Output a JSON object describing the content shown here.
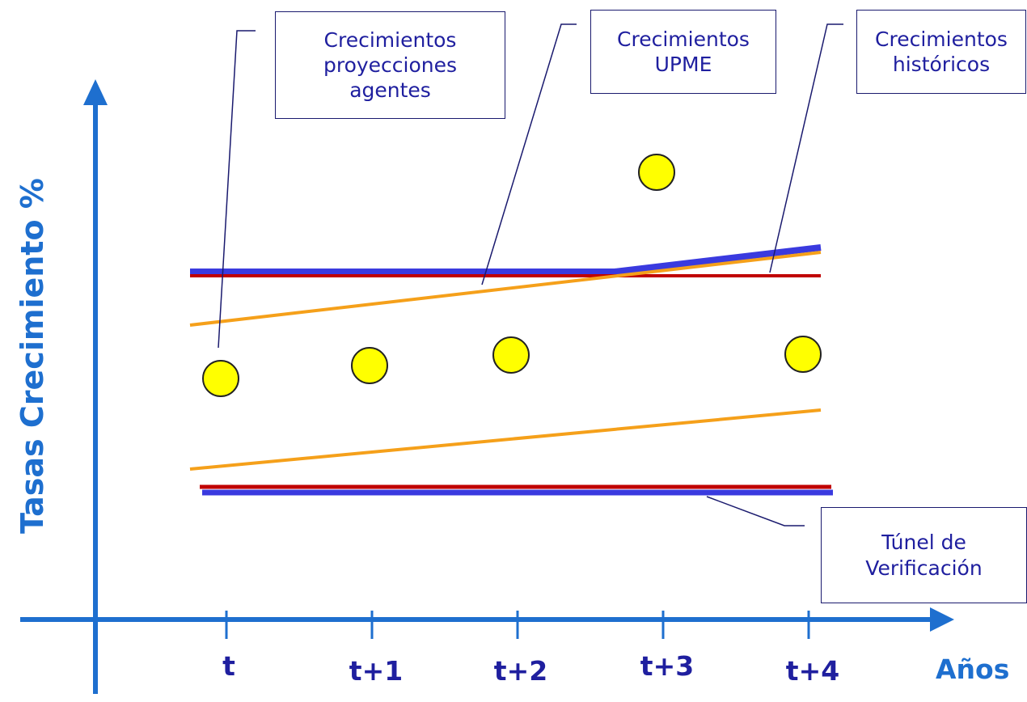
{
  "labels": {
    "agentes": [
      "Crecimientos",
      "proyecciones",
      "agentes"
    ],
    "upme": [
      "Crecimientos",
      "UPME"
    ],
    "historicos": [
      "Crecimientos",
      "históricos"
    ],
    "tunel": [
      "Túnel de",
      "Verificación"
    ]
  },
  "axes": {
    "y_title": "Tasas Crecimiento %",
    "x_title": "Años",
    "x_ticks": [
      "t",
      "t+1",
      "t+2",
      "t+3",
      "t+4"
    ]
  },
  "colors": {
    "axis": "#1e6fcf",
    "upme": "#3a3adf",
    "historicos": "#c00000",
    "agentes_band": "#f5a01a",
    "points": "#ffff00"
  }
}
